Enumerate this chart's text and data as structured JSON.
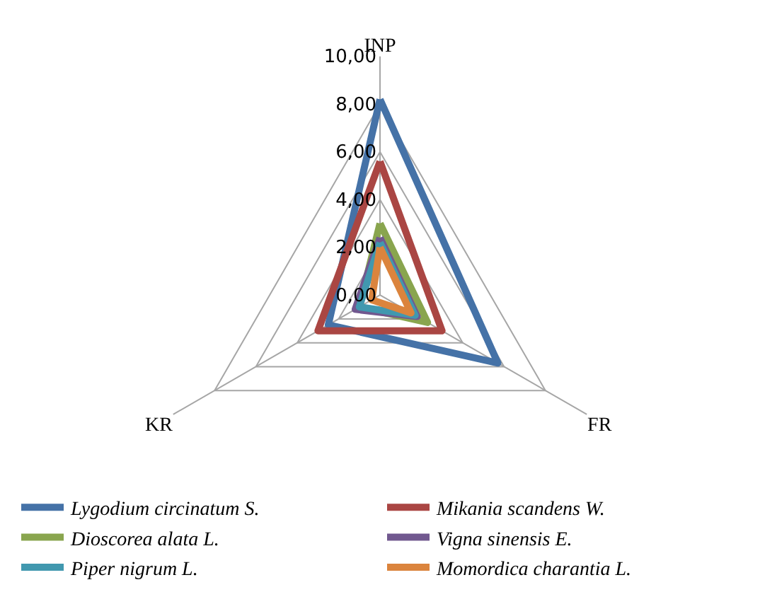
{
  "chart_data": {
    "type": "radar",
    "categories": [
      "INP",
      "FR",
      "KR"
    ],
    "ylim": [
      0,
      10
    ],
    "yticks": [
      {
        "value": 0,
        "label": "0,00"
      },
      {
        "value": 2,
        "label": "2,00"
      },
      {
        "value": 4,
        "label": "4,00"
      },
      {
        "value": 6,
        "label": "6,00"
      },
      {
        "value": 8,
        "label": "8,00"
      },
      {
        "value": 10,
        "label": "10,00"
      }
    ],
    "grid": true,
    "legend": "bottom",
    "marker": "none",
    "line_style": "solid",
    "series": [
      {
        "name": "Lygodium circinatum S.",
        "color": "#4572a7",
        "values": [
          8.2,
          5.7,
          2.5
        ]
      },
      {
        "name": "Mikania scandens W.",
        "color": "#aa4643",
        "values": [
          5.6,
          3.0,
          3.0
        ]
      },
      {
        "name": "Dioscorea alata L.",
        "color": "#89a54e",
        "values": [
          3.0,
          2.3,
          1.0
        ]
      },
      {
        "name": "Vigna sinensis E.",
        "color": "#71588f",
        "values": [
          2.4,
          1.8,
          1.2
        ]
      },
      {
        "name": "Piper nigrum L.",
        "color": "#4198af",
        "values": [
          2.2,
          1.7,
          1.0
        ]
      },
      {
        "name": "Momordica charantia L.",
        "color": "#db843d",
        "values": [
          2.0,
          1.5,
          0.4
        ]
      }
    ]
  }
}
